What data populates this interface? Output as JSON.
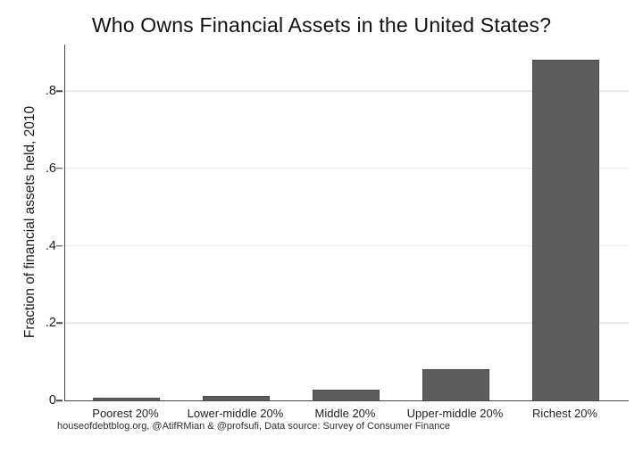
{
  "chart_data": {
    "type": "bar",
    "title": "Who Owns Financial Assets in the United States?",
    "ylabel": "Fraction of financial assets held, 2010",
    "xlabel": "",
    "categories": [
      "Poorest 20%",
      "Lower-middle 20%",
      "Middle 20%",
      "Upper-middle 20%",
      "Richest 20%"
    ],
    "values": [
      0.008,
      0.012,
      0.027,
      0.08,
      0.88
    ],
    "yticks": [
      {
        "value": 0,
        "label": "0"
      },
      {
        "value": 0.2,
        "label": ".2"
      },
      {
        "value": 0.4,
        "label": ".4"
      },
      {
        "value": 0.6,
        "label": ".6"
      },
      {
        "value": 0.8,
        "label": ".8"
      }
    ],
    "ylim": [
      0,
      0.92
    ],
    "grid": "horizontal-light",
    "legend": "none",
    "footer": "houseofdebtblog.org, @AtifRMian & @profsufi, Data source: Survey of Consumer Finance",
    "colors": {
      "bar": "#5d5d5d",
      "bar_outline": "#4a4a4a",
      "gridline": "#e9e9e9",
      "axis": "#474747",
      "text": "#1a1a1a",
      "background": "#ffffff"
    }
  }
}
